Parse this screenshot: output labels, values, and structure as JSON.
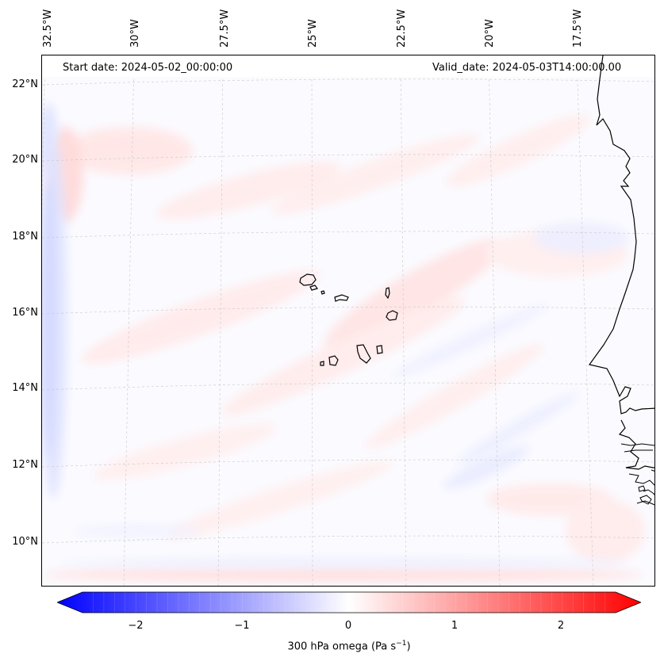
{
  "header": {
    "start_date": "Start date: 2024-05-02_00:00:00",
    "valid_date": "Valid_date: 2024-05-03T14:00:00.00"
  },
  "map": {
    "variable": "300 hPa omega",
    "region": "Cape Verde / eastern tropical Atlantic",
    "lon_labels": [
      "32.5°W",
      "30°W",
      "27.5°W",
      "25°W",
      "22.5°W",
      "20°W",
      "17.5°W"
    ],
    "lat_labels": [
      "22°N",
      "20°N",
      "18°N",
      "16°N",
      "14°N",
      "12°N",
      "10°N"
    ]
  },
  "colorbar": {
    "label_main": "300 hPa omega (Pa s",
    "label_exp": "−1",
    "label_end": ")",
    "ticks": [
      "−2",
      "−1",
      "0",
      "1",
      "2"
    ],
    "tick_values": [
      -2,
      -1,
      0,
      1,
      2
    ],
    "vmin": -2.6,
    "vmax": 2.6,
    "colormap": "bwr",
    "color_min": "#0000ff",
    "color_mid": "#ffffff",
    "color_max": "#ff0000",
    "extend": "both"
  }
}
